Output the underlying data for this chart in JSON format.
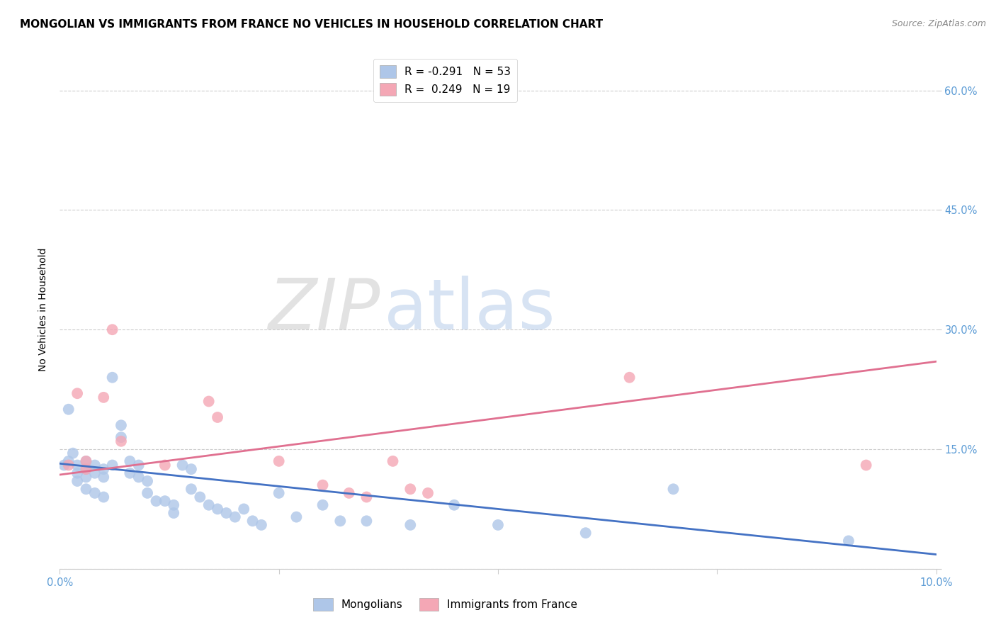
{
  "title": "MONGOLIAN VS IMMIGRANTS FROM FRANCE NO VEHICLES IN HOUSEHOLD CORRELATION CHART",
  "source": "Source: ZipAtlas.com",
  "tick_color": "#5b9bd5",
  "ylabel": "No Vehicles in Household",
  "watermark_zip": "ZIP",
  "watermark_atlas": "atlas",
  "legend_label1": "Mongolians",
  "legend_label2": "Immigrants from France",
  "legend_line1": "R = -0.291   N = 53",
  "legend_line2": "R =  0.249   N = 19",
  "xlim": [
    0.0,
    0.1
  ],
  "ylim": [
    0.0,
    0.65
  ],
  "xticks": [
    0.0,
    0.025,
    0.05,
    0.075,
    0.1
  ],
  "xtick_labels": [
    "0.0%",
    "",
    "",
    "",
    "10.0%"
  ],
  "ytick_positions": [
    0.0,
    0.15,
    0.3,
    0.45,
    0.6
  ],
  "ytick_labels_right": [
    "",
    "15.0%",
    "30.0%",
    "45.0%",
    "60.0%"
  ],
  "blue_scatter_x": [
    0.0005,
    0.001,
    0.001,
    0.0015,
    0.002,
    0.002,
    0.002,
    0.003,
    0.003,
    0.003,
    0.003,
    0.004,
    0.004,
    0.004,
    0.005,
    0.005,
    0.005,
    0.006,
    0.006,
    0.007,
    0.007,
    0.008,
    0.008,
    0.009,
    0.009,
    0.01,
    0.01,
    0.011,
    0.012,
    0.013,
    0.013,
    0.014,
    0.015,
    0.015,
    0.016,
    0.017,
    0.018,
    0.019,
    0.02,
    0.021,
    0.022,
    0.023,
    0.025,
    0.027,
    0.03,
    0.032,
    0.035,
    0.04,
    0.045,
    0.05,
    0.06,
    0.07,
    0.09
  ],
  "blue_scatter_y": [
    0.13,
    0.2,
    0.135,
    0.145,
    0.13,
    0.12,
    0.11,
    0.135,
    0.125,
    0.115,
    0.1,
    0.13,
    0.12,
    0.095,
    0.125,
    0.115,
    0.09,
    0.24,
    0.13,
    0.18,
    0.165,
    0.135,
    0.12,
    0.13,
    0.115,
    0.11,
    0.095,
    0.085,
    0.085,
    0.08,
    0.07,
    0.13,
    0.125,
    0.1,
    0.09,
    0.08,
    0.075,
    0.07,
    0.065,
    0.075,
    0.06,
    0.055,
    0.095,
    0.065,
    0.08,
    0.06,
    0.06,
    0.055,
    0.08,
    0.055,
    0.045,
    0.1,
    0.035
  ],
  "pink_scatter_x": [
    0.001,
    0.002,
    0.003,
    0.003,
    0.005,
    0.006,
    0.007,
    0.012,
    0.017,
    0.018,
    0.025,
    0.03,
    0.033,
    0.035,
    0.038,
    0.04,
    0.042,
    0.065,
    0.092
  ],
  "pink_scatter_y": [
    0.13,
    0.22,
    0.135,
    0.125,
    0.215,
    0.3,
    0.16,
    0.13,
    0.21,
    0.19,
    0.135,
    0.105,
    0.095,
    0.09,
    0.135,
    0.1,
    0.095,
    0.24,
    0.13
  ],
  "blue_line_x": [
    0.0,
    0.1
  ],
  "blue_line_y": [
    0.132,
    0.018
  ],
  "pink_line_x": [
    0.0,
    0.1
  ],
  "pink_line_y": [
    0.118,
    0.26
  ],
  "grid_color": "#cccccc",
  "blue_color": "#aec6e8",
  "pink_color": "#f4a7b5",
  "blue_line_color": "#4472c4",
  "pink_line_color": "#e07090",
  "scatter_size": 130,
  "title_fontsize": 11,
  "axis_label_fontsize": 10,
  "tick_fontsize": 10.5
}
